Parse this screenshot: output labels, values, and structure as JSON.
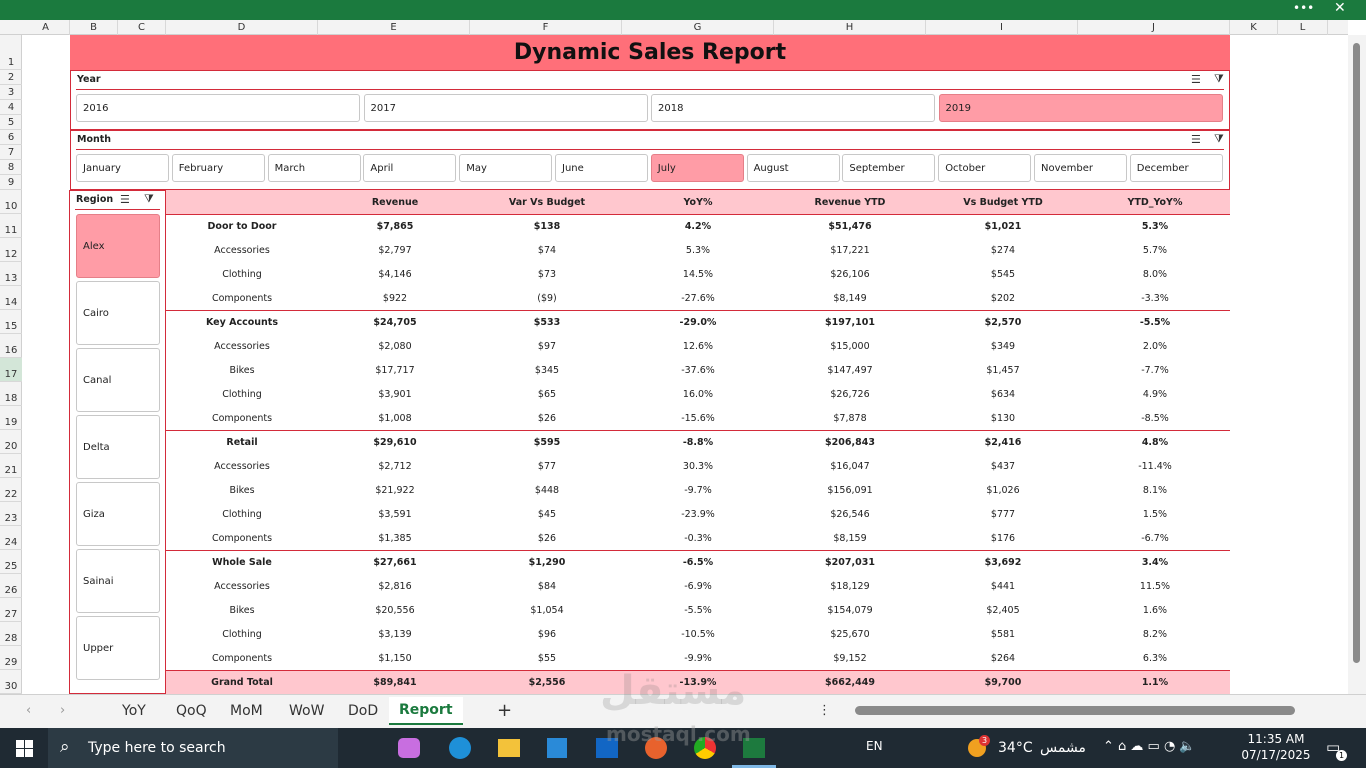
{
  "columns": [
    "A",
    "B",
    "C",
    "D",
    "E",
    "F",
    "G",
    "H",
    "I",
    "J",
    "K",
    "L"
  ],
  "row_numbers": [
    1,
    2,
    3,
    4,
    5,
    6,
    7,
    8,
    9,
    10,
    11,
    12,
    13,
    14,
    15,
    16,
    17,
    18,
    19,
    20,
    21,
    22,
    23,
    24,
    25,
    26,
    27,
    28,
    29,
    30
  ],
  "title": "Dynamic Sales Report",
  "slicers": {
    "year": {
      "label": "Year",
      "items": [
        "2016",
        "2017",
        "2018",
        "2019"
      ],
      "selected": "2019"
    },
    "month": {
      "label": "Month",
      "items": [
        "January",
        "February",
        "March",
        "April",
        "May",
        "June",
        "July",
        "August",
        "September",
        "October",
        "November",
        "December"
      ],
      "selected": "July"
    },
    "region": {
      "label": "Region",
      "items": [
        "Alex",
        "Cairo",
        "Canal",
        "Delta",
        "Giza",
        "Sainai",
        "Upper"
      ],
      "selected": "Alex"
    }
  },
  "table": {
    "headers": [
      "Revenue",
      "Var Vs Budget",
      "YoY%",
      "Revenue YTD",
      "Vs Budget YTD",
      "YTD_YoY%"
    ],
    "rows": [
      {
        "cells": [
          "Door to Door",
          "$7,865",
          "$138",
          "4.2%",
          "$51,476",
          "$1,021",
          "5.3%"
        ],
        "total": true
      },
      {
        "cells": [
          "Accessories",
          "$2,797",
          "$74",
          "5.3%",
          "$17,221",
          "$274",
          "5.7%"
        ]
      },
      {
        "cells": [
          "Clothing",
          "$4,146",
          "$73",
          "14.5%",
          "$26,106",
          "$545",
          "8.0%"
        ]
      },
      {
        "cells": [
          "Components",
          "$922",
          "($9)",
          "-27.6%",
          "$8,149",
          "$202",
          "-3.3%"
        ]
      },
      {
        "cells": [
          "Key Accounts",
          "$24,705",
          "$533",
          "-29.0%",
          "$197,101",
          "$2,570",
          "-5.5%"
        ],
        "total": true
      },
      {
        "cells": [
          "Accessories",
          "$2,080",
          "$97",
          "12.6%",
          "$15,000",
          "$349",
          "2.0%"
        ]
      },
      {
        "cells": [
          "Bikes",
          "$17,717",
          "$345",
          "-37.6%",
          "$147,497",
          "$1,457",
          "-7.7%"
        ]
      },
      {
        "cells": [
          "Clothing",
          "$3,901",
          "$65",
          "16.0%",
          "$26,726",
          "$634",
          "4.9%"
        ]
      },
      {
        "cells": [
          "Components",
          "$1,008",
          "$26",
          "-15.6%",
          "$7,878",
          "$130",
          "-8.5%"
        ]
      },
      {
        "cells": [
          "Retail",
          "$29,610",
          "$595",
          "-8.8%",
          "$206,843",
          "$2,416",
          "4.8%"
        ],
        "total": true
      },
      {
        "cells": [
          "Accessories",
          "$2,712",
          "$77",
          "30.3%",
          "$16,047",
          "$437",
          "-11.4%"
        ]
      },
      {
        "cells": [
          "Bikes",
          "$21,922",
          "$448",
          "-9.7%",
          "$156,091",
          "$1,026",
          "8.1%"
        ]
      },
      {
        "cells": [
          "Clothing",
          "$3,591",
          "$45",
          "-23.9%",
          "$26,546",
          "$777",
          "1.5%"
        ]
      },
      {
        "cells": [
          "Components",
          "$1,385",
          "$26",
          "-0.3%",
          "$8,159",
          "$176",
          "-6.7%"
        ]
      },
      {
        "cells": [
          "Whole Sale",
          "$27,661",
          "$1,290",
          "-6.5%",
          "$207,031",
          "$3,692",
          "3.4%"
        ],
        "total": true
      },
      {
        "cells": [
          "Accessories",
          "$2,816",
          "$84",
          "-6.9%",
          "$18,129",
          "$441",
          "11.5%"
        ]
      },
      {
        "cells": [
          "Bikes",
          "$20,556",
          "$1,054",
          "-5.5%",
          "$154,079",
          "$2,405",
          "1.6%"
        ]
      },
      {
        "cells": [
          "Clothing",
          "$3,139",
          "$96",
          "-10.5%",
          "$25,670",
          "$581",
          "8.2%"
        ]
      },
      {
        "cells": [
          "Components",
          "$1,150",
          "$55",
          "-9.9%",
          "$9,152",
          "$264",
          "6.3%"
        ]
      }
    ],
    "grand_total": [
      "Grand Total",
      "$89,841",
      "$2,556",
      "-13.9%",
      "$662,449",
      "$9,700",
      "1.1%"
    ]
  },
  "sheet_tabs": {
    "tabs": [
      "YoY",
      "QoQ",
      "MoM",
      "WoW",
      "DoD",
      "Report"
    ],
    "active": "Report"
  },
  "watermark": {
    "arabic": "مستقل",
    "latin": "mostaql.com"
  },
  "taskbar": {
    "search": "Type here to search",
    "language": "EN",
    "weather_badge": "3",
    "temperature": "34°C",
    "weather": "مشمس",
    "time": "11:35 AM",
    "date": "07/17/2025",
    "notifications": "1"
  }
}
